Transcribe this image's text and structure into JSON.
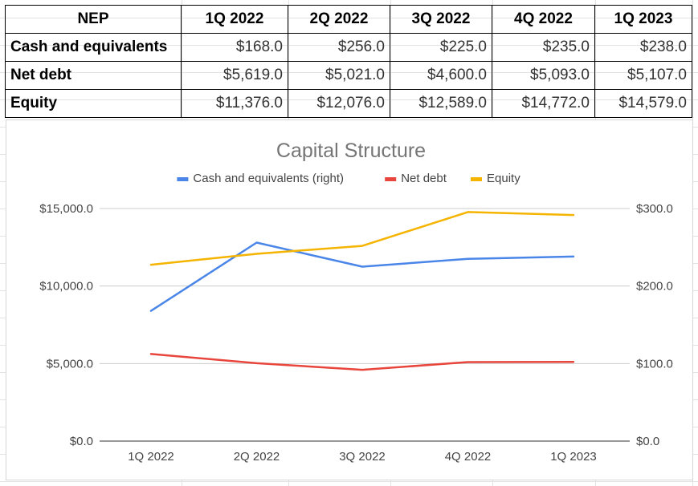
{
  "table": {
    "header": [
      "NEP",
      "1Q 2022",
      "2Q 2022",
      "3Q 2022",
      "4Q 2022",
      "1Q 2023"
    ],
    "rows": [
      {
        "label": "Cash and equivalents",
        "values": [
          "$168.0",
          "$256.0",
          "$225.0",
          "$235.0",
          "$238.0"
        ]
      },
      {
        "label": "Net debt",
        "values": [
          "$5,619.0",
          "$5,021.0",
          "$4,600.0",
          "$5,093.0",
          "$5,107.0"
        ]
      },
      {
        "label": "Equity",
        "values": [
          "$11,376.0",
          "$12,076.0",
          "$12,589.0",
          "$14,772.0",
          "$14,579.0"
        ]
      }
    ]
  },
  "chart_data": {
    "type": "line",
    "title": "Capital Structure",
    "categories": [
      "1Q 2022",
      "2Q 2022",
      "3Q 2022",
      "4Q 2022",
      "1Q 2023"
    ],
    "series": [
      {
        "name": "Cash and equivalents (right)",
        "axis": "right",
        "color": "#4A86E8",
        "values": [
          168.0,
          256.0,
          225.0,
          235.0,
          238.0
        ]
      },
      {
        "name": "Net debt",
        "axis": "left",
        "color": "#E8453C",
        "values": [
          5619.0,
          5021.0,
          4600.0,
          5093.0,
          5107.0
        ]
      },
      {
        "name": "Equity",
        "axis": "left",
        "color": "#F4B400",
        "values": [
          11376.0,
          12076.0,
          12589.0,
          14772.0,
          14579.0
        ]
      }
    ],
    "ylim_left": [
      0,
      15000
    ],
    "ylim_right": [
      0,
      300
    ],
    "yticks_left": [
      "$0.0",
      "$5,000.0",
      "$10,000.0",
      "$15,000.0"
    ],
    "yticks_right": [
      "$0.0",
      "$100.0",
      "$200.0",
      "$300.0"
    ],
    "legend_position": "top",
    "grid": true
  }
}
